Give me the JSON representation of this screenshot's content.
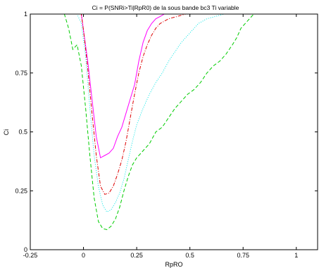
{
  "chart_data": {
    "type": "line",
    "title": "Ci = P(SNRi>Ti|RpR0) de la sous bande bc3 Ti variable",
    "xlabel": "RpRO",
    "ylabel": "Ci",
    "xlim": [
      -0.25,
      1.1
    ],
    "ylim": [
      0,
      1
    ],
    "xticks": [
      -0.25,
      0,
      0.25,
      0.5,
      0.75,
      1
    ],
    "xtick_labels": [
      "-0.25",
      "0",
      "0.25",
      "0.5",
      "0.75",
      "1"
    ],
    "yticks": [
      0,
      0.25,
      0.5,
      0.75,
      1
    ],
    "ytick_labels": [
      "0",
      "0.25",
      "0.5",
      "0.75",
      "1"
    ],
    "grid": false,
    "series": [
      {
        "color": "#ff00ff",
        "dash": "solid",
        "points": [
          [
            -0.25,
            1
          ],
          [
            -0.01,
            1
          ],
          [
            0,
            0.93
          ],
          [
            0.02,
            0.8
          ],
          [
            0.04,
            0.64
          ],
          [
            0.06,
            0.48
          ],
          [
            0.08,
            0.39
          ],
          [
            0.1,
            0.4
          ],
          [
            0.12,
            0.41
          ],
          [
            0.14,
            0.43
          ],
          [
            0.16,
            0.48
          ],
          [
            0.18,
            0.52
          ],
          [
            0.2,
            0.58
          ],
          [
            0.22,
            0.64
          ],
          [
            0.24,
            0.7
          ],
          [
            0.26,
            0.8
          ],
          [
            0.28,
            0.88
          ],
          [
            0.3,
            0.93
          ],
          [
            0.32,
            0.96
          ],
          [
            0.34,
            0.98
          ],
          [
            0.36,
            0.99
          ],
          [
            0.38,
            1
          ],
          [
            1.1,
            1
          ]
        ]
      },
      {
        "color": "#dd0000",
        "dash": "dashdot",
        "points": [
          [
            -0.25,
            1
          ],
          [
            -0.01,
            1
          ],
          [
            0,
            0.93
          ],
          [
            0.02,
            0.77
          ],
          [
            0.04,
            0.58
          ],
          [
            0.06,
            0.4
          ],
          [
            0.08,
            0.27
          ],
          [
            0.1,
            0.235
          ],
          [
            0.12,
            0.24
          ],
          [
            0.14,
            0.27
          ],
          [
            0.16,
            0.32
          ],
          [
            0.18,
            0.38
          ],
          [
            0.2,
            0.46
          ],
          [
            0.22,
            0.56
          ],
          [
            0.24,
            0.66
          ],
          [
            0.26,
            0.75
          ],
          [
            0.28,
            0.82
          ],
          [
            0.3,
            0.87
          ],
          [
            0.32,
            0.91
          ],
          [
            0.34,
            0.94
          ],
          [
            0.36,
            0.96
          ],
          [
            0.38,
            0.97
          ],
          [
            0.4,
            0.98
          ],
          [
            0.44,
            0.99
          ],
          [
            0.48,
            1
          ],
          [
            1.1,
            1
          ]
        ]
      },
      {
        "color": "#00e5e5",
        "dash": "dotted",
        "points": [
          [
            -0.25,
            1
          ],
          [
            -0.03,
            1
          ],
          [
            -0.01,
            0.96
          ],
          [
            0.01,
            0.82
          ],
          [
            0.03,
            0.6
          ],
          [
            0.05,
            0.4
          ],
          [
            0.07,
            0.27
          ],
          [
            0.09,
            0.19
          ],
          [
            0.11,
            0.16
          ],
          [
            0.13,
            0.17
          ],
          [
            0.15,
            0.2
          ],
          [
            0.17,
            0.24
          ],
          [
            0.19,
            0.3
          ],
          [
            0.21,
            0.38
          ],
          [
            0.23,
            0.46
          ],
          [
            0.25,
            0.53
          ],
          [
            0.28,
            0.6
          ],
          [
            0.31,
            0.66
          ],
          [
            0.34,
            0.71
          ],
          [
            0.37,
            0.75
          ],
          [
            0.4,
            0.8
          ],
          [
            0.43,
            0.84
          ],
          [
            0.46,
            0.88
          ],
          [
            0.5,
            0.92
          ],
          [
            0.54,
            0.96
          ],
          [
            0.58,
            0.98
          ],
          [
            0.62,
            0.99
          ],
          [
            0.66,
            1
          ],
          [
            1.1,
            1
          ]
        ]
      },
      {
        "color": "#00cc00",
        "dash": "dashed",
        "points": [
          [
            -0.25,
            1
          ],
          [
            -0.09,
            1
          ],
          [
            -0.07,
            0.94
          ],
          [
            -0.05,
            0.85
          ],
          [
            -0.03,
            0.87
          ],
          [
            -0.01,
            0.78
          ],
          [
            0.01,
            0.6
          ],
          [
            0.03,
            0.4
          ],
          [
            0.05,
            0.22
          ],
          [
            0.07,
            0.12
          ],
          [
            0.09,
            0.09
          ],
          [
            0.11,
            0.085
          ],
          [
            0.13,
            0.1
          ],
          [
            0.15,
            0.13
          ],
          [
            0.17,
            0.18
          ],
          [
            0.19,
            0.25
          ],
          [
            0.21,
            0.31
          ],
          [
            0.23,
            0.36
          ],
          [
            0.25,
            0.39
          ],
          [
            0.27,
            0.41
          ],
          [
            0.29,
            0.43
          ],
          [
            0.31,
            0.45
          ],
          [
            0.34,
            0.5
          ],
          [
            0.37,
            0.52
          ],
          [
            0.4,
            0.56
          ],
          [
            0.43,
            0.6
          ],
          [
            0.46,
            0.63
          ],
          [
            0.49,
            0.66
          ],
          [
            0.52,
            0.68
          ],
          [
            0.55,
            0.71
          ],
          [
            0.58,
            0.75
          ],
          [
            0.61,
            0.78
          ],
          [
            0.64,
            0.8
          ],
          [
            0.67,
            0.83
          ],
          [
            0.7,
            0.87
          ],
          [
            0.72,
            0.9
          ],
          [
            0.74,
            0.94
          ],
          [
            0.76,
            0.96
          ],
          [
            0.78,
            0.98
          ],
          [
            0.8,
            1
          ],
          [
            1.1,
            1
          ]
        ]
      }
    ]
  }
}
